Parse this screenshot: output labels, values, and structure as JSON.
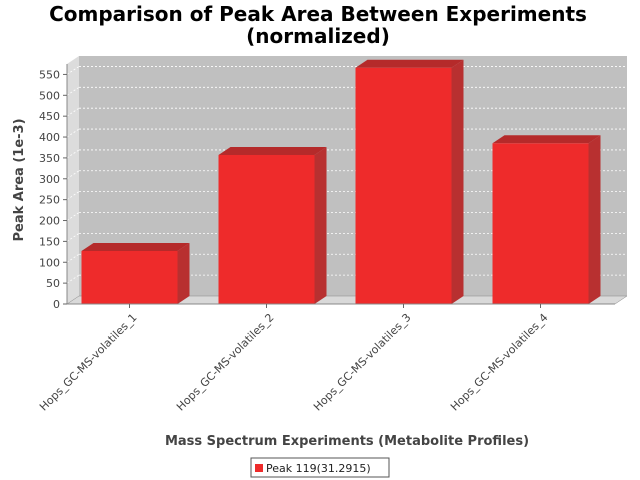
{
  "chart_data": {
    "type": "bar",
    "title_line1": "Comparison of Peak Area Between Experiments",
    "title_line2": "(normalized)",
    "xlabel": "Mass Spectrum Experiments (Metabolite Profiles)",
    "ylabel": "Peak Area (1e-3)",
    "categories": [
      "Hops_GC-MS-volatiles_1",
      "Hops_GC-MS-volatiles_2",
      "Hops_GC-MS-volatiles_3",
      "Hops_GC-MS-volatiles_4"
    ],
    "series": [
      {
        "name": "Peak 119(31.2915)",
        "values": [
          127,
          357,
          566,
          385
        ]
      }
    ],
    "ylim": [
      0,
      575
    ],
    "yticks": [
      0,
      50,
      100,
      150,
      200,
      250,
      300,
      350,
      400,
      450,
      500,
      550
    ],
    "grid": true,
    "legend": "bottom-center",
    "colors": {
      "bar_front": "#ee2b2b",
      "bar_top": "#b52a2a",
      "bar_side": "#b83030",
      "plot_back": "#c0c0c0",
      "plot_floor": "#d9d9d9",
      "plot_left_wall": "#dcdcdc",
      "gridline": "#ffffff"
    }
  }
}
